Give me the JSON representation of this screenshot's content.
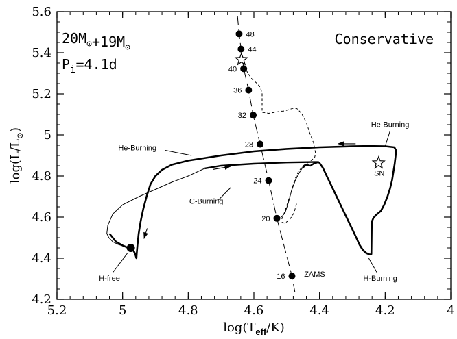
{
  "chart_data": {
    "type": "line",
    "title": "",
    "xlabel": "log(T_eff/K)",
    "ylabel": "log(L/L⊙)",
    "xlim": [
      5.2,
      4.0
    ],
    "ylim": [
      4.2,
      5.6
    ],
    "x_reversed": true,
    "xticks": [
      "5.2",
      "5",
      "4.8",
      "4.6",
      "4.4",
      "4.2",
      "4"
    ],
    "yticks": [
      "4.2",
      "4.4",
      "4.6",
      "4.8",
      "5",
      "5.2",
      "5.4",
      "5.6"
    ],
    "header": {
      "masses": "20M⊙+19M⊙",
      "period": "Pi=4.1d",
      "mode": "Conservative"
    },
    "zams": {
      "label": "ZAMS",
      "points": [
        {
          "mass": "48",
          "logT": 4.645,
          "logL": 5.492
        },
        {
          "mass": "44",
          "logT": 4.639,
          "logL": 5.418
        },
        {
          "mass": "40",
          "logT": 4.631,
          "logL": 5.322
        },
        {
          "mass": "36",
          "logT": 4.616,
          "logL": 5.218
        },
        {
          "mass": "32",
          "logT": 4.602,
          "logL": 5.096
        },
        {
          "mass": "28",
          "logT": 4.581,
          "logL": 4.955
        },
        {
          "mass": "24",
          "logT": 4.555,
          "logL": 4.778
        },
        {
          "mass": "20",
          "logT": 4.53,
          "logL": 4.594
        },
        {
          "mass": "16",
          "logT": 4.484,
          "logL": 4.313
        }
      ]
    },
    "primary_track": [
      [
        4.402,
        4.868
      ],
      [
        4.39,
        4.84
      ],
      [
        4.375,
        4.79
      ],
      [
        4.36,
        4.74
      ],
      [
        4.345,
        4.69
      ],
      [
        4.33,
        4.64
      ],
      [
        4.315,
        4.59
      ],
      [
        4.3,
        4.54
      ],
      [
        4.288,
        4.5
      ],
      [
        4.278,
        4.465
      ],
      [
        4.268,
        4.44
      ],
      [
        4.258,
        4.425
      ],
      [
        4.248,
        4.418
      ],
      [
        4.244,
        4.418
      ],
      [
        4.242,
        4.42
      ],
      [
        4.241,
        4.55
      ],
      [
        4.24,
        4.58
      ],
      [
        4.236,
        4.595
      ],
      [
        4.228,
        4.61
      ],
      [
        4.213,
        4.63
      ],
      [
        4.203,
        4.66
      ],
      [
        4.193,
        4.7
      ],
      [
        4.185,
        4.74
      ],
      [
        4.179,
        4.78
      ],
      [
        4.175,
        4.82
      ],
      [
        4.171,
        4.86
      ],
      [
        4.168,
        4.9
      ],
      [
        4.167,
        4.925
      ],
      [
        4.172,
        4.94
      ],
      [
        4.2,
        4.945
      ],
      [
        4.25,
        4.946
      ],
      [
        4.3,
        4.945
      ],
      [
        4.4,
        4.94
      ],
      [
        4.5,
        4.932
      ],
      [
        4.6,
        4.92
      ],
      [
        4.7,
        4.9
      ],
      [
        4.8,
        4.875
      ],
      [
        4.85,
        4.855
      ],
      [
        4.88,
        4.83
      ],
      [
        4.9,
        4.8
      ],
      [
        4.915,
        4.76
      ],
      [
        4.927,
        4.7
      ],
      [
        4.937,
        4.64
      ],
      [
        4.945,
        4.58
      ],
      [
        4.951,
        4.52
      ],
      [
        4.955,
        4.46
      ],
      [
        4.957,
        4.42
      ],
      [
        4.958,
        4.4
      ],
      [
        4.962,
        4.422
      ],
      [
        4.968,
        4.44
      ],
      [
        4.975,
        4.445
      ],
      [
        4.985,
        4.452
      ],
      [
        5.0,
        4.462
      ],
      [
        5.02,
        4.48
      ],
      [
        5.04,
        4.52
      ]
    ],
    "secondary_track": [
      [
        4.52,
        4.594
      ],
      [
        4.505,
        4.62
      ],
      [
        4.495,
        4.67
      ],
      [
        4.485,
        4.73
      ],
      [
        4.472,
        4.785
      ],
      [
        4.462,
        4.815
      ],
      [
        4.452,
        4.84
      ],
      [
        4.44,
        4.855
      ],
      [
        4.428,
        4.85
      ],
      [
        4.418,
        4.86
      ],
      [
        4.405,
        4.867
      ],
      [
        4.402,
        4.868
      ],
      [
        4.42,
        4.868
      ],
      [
        4.5,
        4.866
      ],
      [
        4.6,
        4.86
      ],
      [
        4.7,
        4.85
      ],
      [
        4.75,
        4.837
      ],
      [
        4.8,
        4.8
      ],
      [
        4.85,
        4.77
      ],
      [
        4.9,
        4.735
      ],
      [
        4.95,
        4.7
      ],
      [
        5.0,
        4.66
      ],
      [
        5.03,
        4.615
      ],
      [
        5.045,
        4.56
      ],
      [
        5.048,
        4.52
      ],
      [
        5.042,
        4.5
      ],
      [
        5.03,
        4.48
      ],
      [
        5.015,
        4.468
      ],
      [
        5.0,
        4.46
      ],
      [
        4.985,
        4.452
      ],
      [
        4.975,
        4.45
      ]
    ],
    "mass_transfer_dashed": [
      [
        4.515,
        4.59
      ],
      [
        4.505,
        4.63
      ],
      [
        4.495,
        4.68
      ],
      [
        4.485,
        4.73
      ],
      [
        4.476,
        4.78
      ],
      [
        4.465,
        4.82
      ],
      [
        4.45,
        4.85
      ],
      [
        4.43,
        4.87
      ],
      [
        4.415,
        4.89
      ],
      [
        4.412,
        4.91
      ],
      [
        4.418,
        4.96
      ],
      [
        4.43,
        5.01
      ],
      [
        4.44,
        5.06
      ],
      [
        4.455,
        5.105
      ],
      [
        4.47,
        5.13
      ],
      [
        4.48,
        5.13
      ],
      [
        4.5,
        5.12
      ],
      [
        4.51,
        5.116
      ],
      [
        4.52,
        5.115
      ],
      [
        4.535,
        5.11
      ],
      [
        4.555,
        5.105
      ],
      [
        4.575,
        5.11
      ],
      [
        4.575,
        5.2
      ],
      [
        4.58,
        5.23
      ],
      [
        4.59,
        5.25
      ],
      [
        4.605,
        5.27
      ],
      [
        4.618,
        5.3
      ],
      [
        4.628,
        5.33
      ],
      [
        4.633,
        5.355
      ]
    ],
    "dashed_short": [
      [
        4.515,
        4.575
      ],
      [
        4.505,
        4.57
      ],
      [
        4.49,
        4.59
      ],
      [
        4.478,
        4.62
      ],
      [
        4.47,
        4.665
      ]
    ],
    "markers": [
      {
        "name": "h-free-dot",
        "logT": 4.975,
        "logL": 4.45,
        "type": "dot"
      },
      {
        "name": "sn-star",
        "logT": 4.22,
        "logL": 4.864,
        "type": "star"
      },
      {
        "name": "top-star",
        "logT": 4.638,
        "logL": 5.367,
        "type": "star"
      }
    ],
    "arrows": [
      {
        "name": "he-burning-top-arrow",
        "from": [
          4.29,
          4.957
        ],
        "to": [
          4.345,
          4.957
        ]
      },
      {
        "name": "he-burning-mid-arrow",
        "from": [
          4.725,
          4.832
        ],
        "to": [
          4.67,
          4.847
        ]
      },
      {
        "name": "c-burning-down-arrow",
        "from": [
          4.925,
          4.545
        ],
        "to": [
          4.935,
          4.495
        ]
      }
    ],
    "annotations": [
      {
        "name": "annot-he-burning-right",
        "text": "He-Burning",
        "x": 4.185,
        "y": 5.038
      },
      {
        "name": "annot-he-burning-left",
        "text": "He-Burning",
        "x": 4.955,
        "y": 4.925
      },
      {
        "name": "annot-c-burning",
        "text": "C-Burning",
        "x": 4.745,
        "y": 4.665
      },
      {
        "name": "annot-sn",
        "text": "SN",
        "x": 4.218,
        "y": 4.802
      },
      {
        "name": "annot-h-free",
        "text": "H-free",
        "x": 5.04,
        "y": 4.29
      },
      {
        "name": "annot-h-burning",
        "text": "H-Burning",
        "x": 4.215,
        "y": 4.29
      },
      {
        "name": "annot-zams",
        "text": "ZAMS",
        "x": 4.415,
        "y": 4.31
      }
    ],
    "leader_lines": [
      {
        "name": "leader-he-burning-right",
        "from": [
          4.185,
          5.02
        ],
        "to": [
          4.2,
          4.945
        ]
      },
      {
        "name": "leader-he-burning-left",
        "from": [
          4.87,
          4.925
        ],
        "to": [
          4.79,
          4.9
        ]
      },
      {
        "name": "leader-c-burning",
        "from": [
          4.71,
          4.68
        ],
        "to": [
          4.67,
          4.745
        ]
      },
      {
        "name": "leader-h-free",
        "from": [
          5.03,
          4.33
        ],
        "to": [
          4.985,
          4.425
        ]
      },
      {
        "name": "leader-h-burning",
        "from": [
          4.225,
          4.33
        ],
        "to": [
          4.25,
          4.4
        ]
      }
    ]
  }
}
